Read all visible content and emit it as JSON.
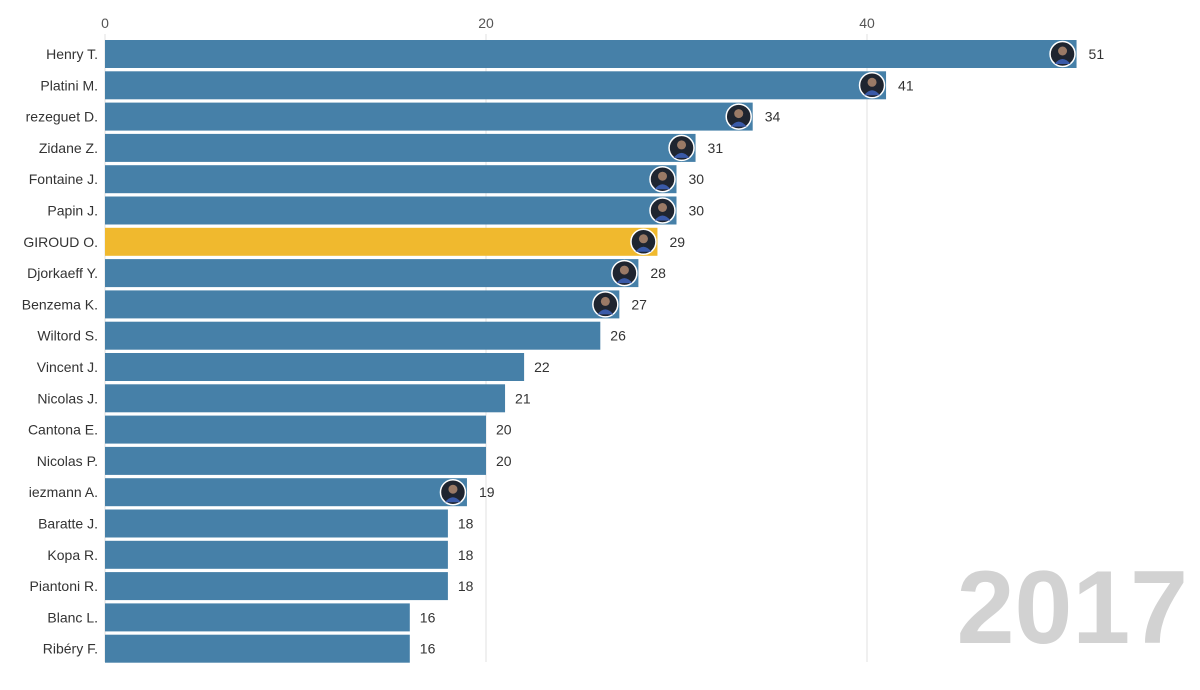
{
  "chart_data": {
    "type": "bar",
    "orientation": "horizontal",
    "title": "",
    "xlabel": "",
    "ylabel": "",
    "xlim": [
      0,
      51
    ],
    "xticks": [
      0,
      20,
      40
    ],
    "grid": true,
    "year_label": "2017",
    "categories": [
      "Henry T.",
      "Platini M.",
      "rezeguet D.",
      "Zidane Z.",
      "Fontaine J.",
      "Papin J.",
      "GIROUD O.",
      "Djorkaeff Y.",
      "Benzema K.",
      "Wiltord S.",
      "Vincent J.",
      "Nicolas J.",
      "Cantona E.",
      "Nicolas P.",
      "iezmann A.",
      "Baratte J.",
      "Kopa R.",
      "Piantoni R.",
      "Blanc L.",
      "Ribéry F."
    ],
    "values": [
      51,
      41,
      34,
      31,
      30,
      30,
      29,
      28,
      27,
      26,
      22,
      21,
      20,
      20,
      19,
      18,
      18,
      18,
      16,
      16
    ],
    "avatars": [
      true,
      true,
      true,
      true,
      true,
      true,
      true,
      true,
      true,
      false,
      false,
      false,
      false,
      false,
      true,
      false,
      false,
      false,
      false,
      false
    ],
    "highlight": "GIROUD O.",
    "colors": {
      "bar": "#4680a8",
      "highlight": "#f0b92e",
      "grid": "#e2e2e2",
      "year": "#d2d2d2"
    }
  }
}
